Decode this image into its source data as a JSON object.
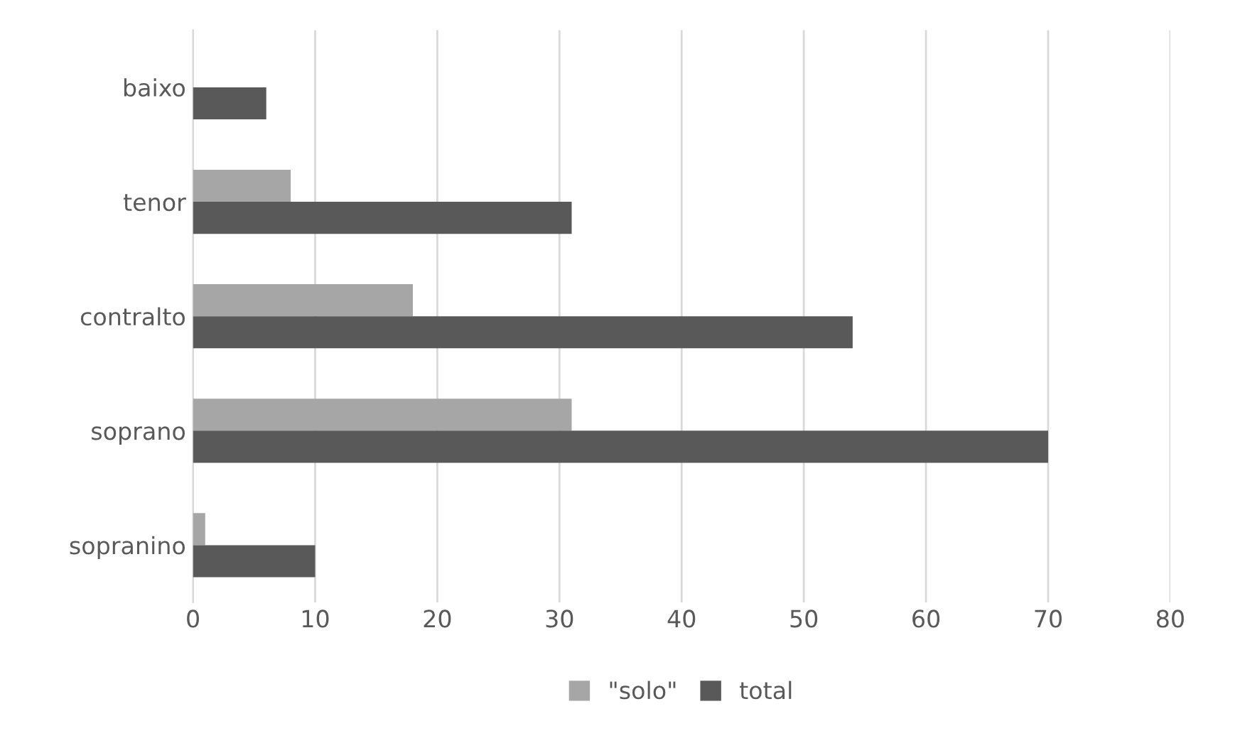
{
  "chart_data": {
    "type": "bar",
    "orientation": "horizontal",
    "categories": [
      "baixo",
      "tenor",
      "contralto",
      "soprano",
      "sopranino"
    ],
    "series": [
      {
        "name": "\"solo\"",
        "color": "#a6a6a6",
        "values": [
          0,
          8,
          18,
          31,
          1
        ]
      },
      {
        "name": "total",
        "color": "#595959",
        "values": [
          6,
          31,
          54,
          70,
          10
        ]
      }
    ],
    "xlim": [
      0,
      80
    ],
    "xticks": [
      0,
      10,
      20,
      30,
      40,
      50,
      60,
      70,
      80
    ],
    "grid": "x",
    "legend": "bottom"
  }
}
